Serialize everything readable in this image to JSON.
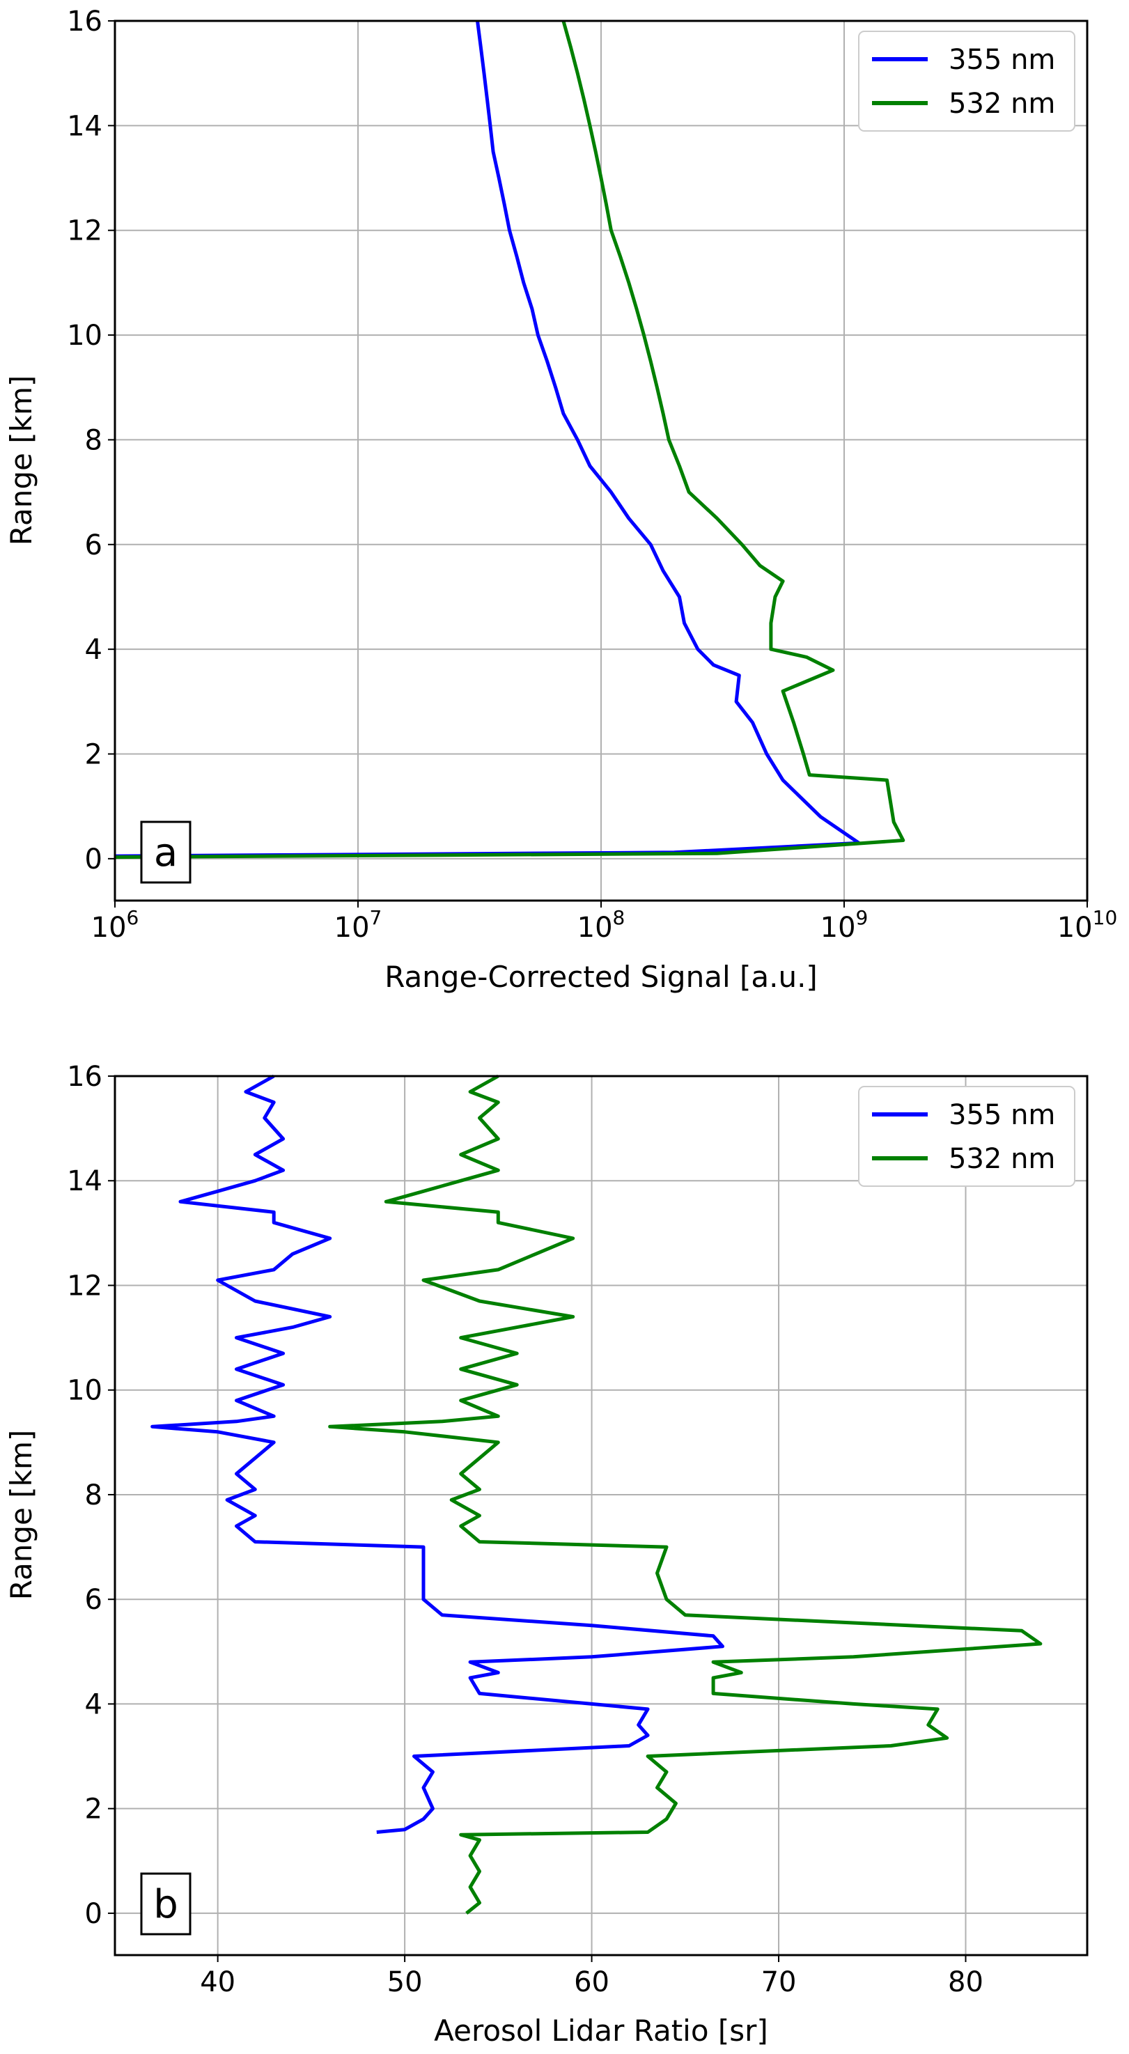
{
  "chart_data": [
    {
      "type": "line",
      "panel_label": "a",
      "xlabel": "Range-Corrected Signal [a.u.]",
      "ylabel": "Range [km]",
      "x_scale": "log",
      "xlim": [
        1000000,
        10000000000
      ],
      "ylim": [
        -0.8,
        16
      ],
      "x_ticks": [
        {
          "value": 1000000,
          "base": "10",
          "exp": "6"
        },
        {
          "value": 10000000,
          "base": "10",
          "exp": "7"
        },
        {
          "value": 100000000,
          "base": "10",
          "exp": "8"
        },
        {
          "value": 1000000000,
          "base": "10",
          "exp": "9"
        },
        {
          "value": 10000000000,
          "base": "10",
          "exp": "10"
        }
      ],
      "y_ticks": [
        "0",
        "2",
        "4",
        "6",
        "8",
        "10",
        "12",
        "14",
        "16"
      ],
      "grid": true,
      "legend_position": "top-right",
      "series": [
        {
          "name": "355 nm",
          "color": "#0000ff",
          "points": [
            [
              1000000,
              0.05
            ],
            [
              200000000,
              0.12
            ],
            [
              1150000000,
              0.3
            ],
            [
              800000000,
              0.8
            ],
            [
              560000000,
              1.5
            ],
            [
              480000000,
              2.0
            ],
            [
              420000000,
              2.6
            ],
            [
              360000000,
              3.0
            ],
            [
              370000000,
              3.5
            ],
            [
              290000000,
              3.7
            ],
            [
              250000000,
              4.0
            ],
            [
              220000000,
              4.5
            ],
            [
              210000000,
              5.0
            ],
            [
              180000000,
              5.5
            ],
            [
              160000000,
              6.0
            ],
            [
              130000000,
              6.5
            ],
            [
              110000000,
              7.0
            ],
            [
              90000000,
              7.5
            ],
            [
              80000000,
              8.0
            ],
            [
              70000000,
              8.5
            ],
            [
              65000000,
              9.0
            ],
            [
              60000000,
              9.5
            ],
            [
              55000000,
              10.0
            ],
            [
              52000000,
              10.5
            ],
            [
              48000000,
              11.0
            ],
            [
              45000000,
              11.5
            ],
            [
              42000000,
              12.0
            ],
            [
              40000000,
              12.5
            ],
            [
              38000000,
              13.0
            ],
            [
              36000000,
              13.5
            ],
            [
              35000000,
              14.0
            ],
            [
              34000000,
              14.5
            ],
            [
              33000000,
              15.0
            ],
            [
              32000000,
              15.5
            ],
            [
              31000000,
              16.0
            ]
          ]
        },
        {
          "name": "532 nm",
          "color": "#008000",
          "points": [
            [
              1000000,
              0.03
            ],
            [
              300000000,
              0.1
            ],
            [
              1750000000,
              0.35
            ],
            [
              1600000000,
              0.7
            ],
            [
              1500000000,
              1.5
            ],
            [
              720000000,
              1.6
            ],
            [
              680000000,
              2.0
            ],
            [
              620000000,
              2.6
            ],
            [
              560000000,
              3.2
            ],
            [
              900000000,
              3.6
            ],
            [
              700000000,
              3.85
            ],
            [
              500000000,
              4.0
            ],
            [
              500000000,
              4.5
            ],
            [
              520000000,
              5.0
            ],
            [
              560000000,
              5.3
            ],
            [
              450000000,
              5.6
            ],
            [
              380000000,
              6.0
            ],
            [
              300000000,
              6.5
            ],
            [
              230000000,
              7.0
            ],
            [
              210000000,
              7.5
            ],
            [
              190000000,
              8.0
            ],
            [
              180000000,
              8.5
            ],
            [
              170000000,
              9.0
            ],
            [
              160000000,
              9.5
            ],
            [
              150000000,
              10.0
            ],
            [
              140000000,
              10.5
            ],
            [
              130000000,
              11.0
            ],
            [
              120000000,
              11.5
            ],
            [
              110000000,
              12.0
            ],
            [
              105000000,
              12.5
            ],
            [
              100000000,
              13.0
            ],
            [
              95000000,
              13.5
            ],
            [
              90000000,
              14.0
            ],
            [
              85000000,
              14.5
            ],
            [
              80000000,
              15.0
            ],
            [
              75000000,
              15.5
            ],
            [
              70000000,
              16.0
            ]
          ]
        }
      ]
    },
    {
      "type": "line",
      "panel_label": "b",
      "xlabel": "Aerosol Lidar Ratio [sr]",
      "ylabel": "Range [km]",
      "x_scale": "linear",
      "xlim": [
        34.5,
        86.5
      ],
      "ylim": [
        -0.8,
        16
      ],
      "x_ticks": [
        "40",
        "50",
        "60",
        "70",
        "80"
      ],
      "y_ticks": [
        "0",
        "2",
        "4",
        "6",
        "8",
        "10",
        "12",
        "14",
        "16"
      ],
      "grid": true,
      "legend_position": "top-right",
      "series": [
        {
          "name": "355 nm",
          "color": "#0000ff",
          "points": [
            [
              48.5,
              1.55
            ],
            [
              50.0,
              1.6
            ],
            [
              51.0,
              1.8
            ],
            [
              51.5,
              2.0
            ],
            [
              51.0,
              2.4
            ],
            [
              51.5,
              2.7
            ],
            [
              50.5,
              3.0
            ],
            [
              62.0,
              3.2
            ],
            [
              63.0,
              3.4
            ],
            [
              62.5,
              3.6
            ],
            [
              63.0,
              3.9
            ],
            [
              60.0,
              4.0
            ],
            [
              54.0,
              4.2
            ],
            [
              53.5,
              4.5
            ],
            [
              55.0,
              4.6
            ],
            [
              53.5,
              4.8
            ],
            [
              60.0,
              4.9
            ],
            [
              67.0,
              5.1
            ],
            [
              66.5,
              5.3
            ],
            [
              60.0,
              5.5
            ],
            [
              52.0,
              5.7
            ],
            [
              51.0,
              6.0
            ],
            [
              51.0,
              6.5
            ],
            [
              51.0,
              7.0
            ],
            [
              42.0,
              7.1
            ],
            [
              41.0,
              7.4
            ],
            [
              42.0,
              7.6
            ],
            [
              40.5,
              7.9
            ],
            [
              42.0,
              8.1
            ],
            [
              41.0,
              8.4
            ],
            [
              42.0,
              8.7
            ],
            [
              43.0,
              9.0
            ],
            [
              40.0,
              9.2
            ],
            [
              36.5,
              9.3
            ],
            [
              41.0,
              9.4
            ],
            [
              43.0,
              9.5
            ],
            [
              41.0,
              9.8
            ],
            [
              43.5,
              10.1
            ],
            [
              41.0,
              10.4
            ],
            [
              43.5,
              10.7
            ],
            [
              41.0,
              11.0
            ],
            [
              44.0,
              11.2
            ],
            [
              46.0,
              11.4
            ],
            [
              42.0,
              11.7
            ],
            [
              40.0,
              12.1
            ],
            [
              43.0,
              12.3
            ],
            [
              44.0,
              12.6
            ],
            [
              46.0,
              12.9
            ],
            [
              43.0,
              13.2
            ],
            [
              43.0,
              13.4
            ],
            [
              38.0,
              13.6
            ],
            [
              40.0,
              13.8
            ],
            [
              42.0,
              14.0
            ],
            [
              43.5,
              14.2
            ],
            [
              42.0,
              14.5
            ],
            [
              43.5,
              14.8
            ],
            [
              42.5,
              15.2
            ],
            [
              43.0,
              15.5
            ],
            [
              41.5,
              15.7
            ],
            [
              42.5,
              15.9
            ],
            [
              43.0,
              16.0
            ]
          ]
        },
        {
          "name": "532 nm",
          "color": "#008000",
          "points": [
            [
              53.3,
              0.0
            ],
            [
              54.0,
              0.2
            ],
            [
              53.5,
              0.5
            ],
            [
              54.0,
              0.8
            ],
            [
              53.5,
              1.1
            ],
            [
              54.0,
              1.4
            ],
            [
              53.0,
              1.5
            ],
            [
              63.0,
              1.55
            ],
            [
              64.0,
              1.8
            ],
            [
              64.5,
              2.1
            ],
            [
              63.5,
              2.4
            ],
            [
              64.0,
              2.7
            ],
            [
              63.0,
              3.0
            ],
            [
              76.0,
              3.2
            ],
            [
              79.0,
              3.35
            ],
            [
              78.0,
              3.6
            ],
            [
              78.5,
              3.9
            ],
            [
              74.0,
              4.0
            ],
            [
              66.5,
              4.2
            ],
            [
              66.5,
              4.5
            ],
            [
              68.0,
              4.6
            ],
            [
              66.5,
              4.8
            ],
            [
              74.0,
              4.9
            ],
            [
              84.0,
              5.15
            ],
            [
              83.0,
              5.4
            ],
            [
              74.0,
              5.55
            ],
            [
              65.0,
              5.7
            ],
            [
              64.0,
              6.0
            ],
            [
              63.5,
              6.5
            ],
            [
              64.0,
              7.0
            ],
            [
              54.0,
              7.1
            ],
            [
              53.0,
              7.4
            ],
            [
              54.0,
              7.6
            ],
            [
              52.5,
              7.9
            ],
            [
              54.0,
              8.1
            ],
            [
              53.0,
              8.4
            ],
            [
              54.0,
              8.7
            ],
            [
              55.0,
              9.0
            ],
            [
              50.0,
              9.2
            ],
            [
              46.0,
              9.3
            ],
            [
              52.0,
              9.4
            ],
            [
              55.0,
              9.5
            ],
            [
              53.0,
              9.8
            ],
            [
              56.0,
              10.1
            ],
            [
              53.0,
              10.4
            ],
            [
              56.0,
              10.7
            ],
            [
              53.0,
              11.0
            ],
            [
              56.0,
              11.2
            ],
            [
              59.0,
              11.4
            ],
            [
              54.0,
              11.7
            ],
            [
              51.0,
              12.1
            ],
            [
              55.0,
              12.3
            ],
            [
              57.0,
              12.6
            ],
            [
              59.0,
              12.9
            ],
            [
              55.0,
              13.2
            ],
            [
              55.0,
              13.4
            ],
            [
              49.0,
              13.6
            ],
            [
              51.0,
              13.8
            ],
            [
              53.0,
              14.0
            ],
            [
              55.0,
              14.2
            ],
            [
              53.0,
              14.5
            ],
            [
              55.0,
              14.8
            ],
            [
              54.0,
              15.2
            ],
            [
              55.0,
              15.5
            ],
            [
              53.5,
              15.7
            ],
            [
              54.5,
              15.9
            ],
            [
              55.0,
              16.0
            ]
          ]
        }
      ]
    }
  ]
}
